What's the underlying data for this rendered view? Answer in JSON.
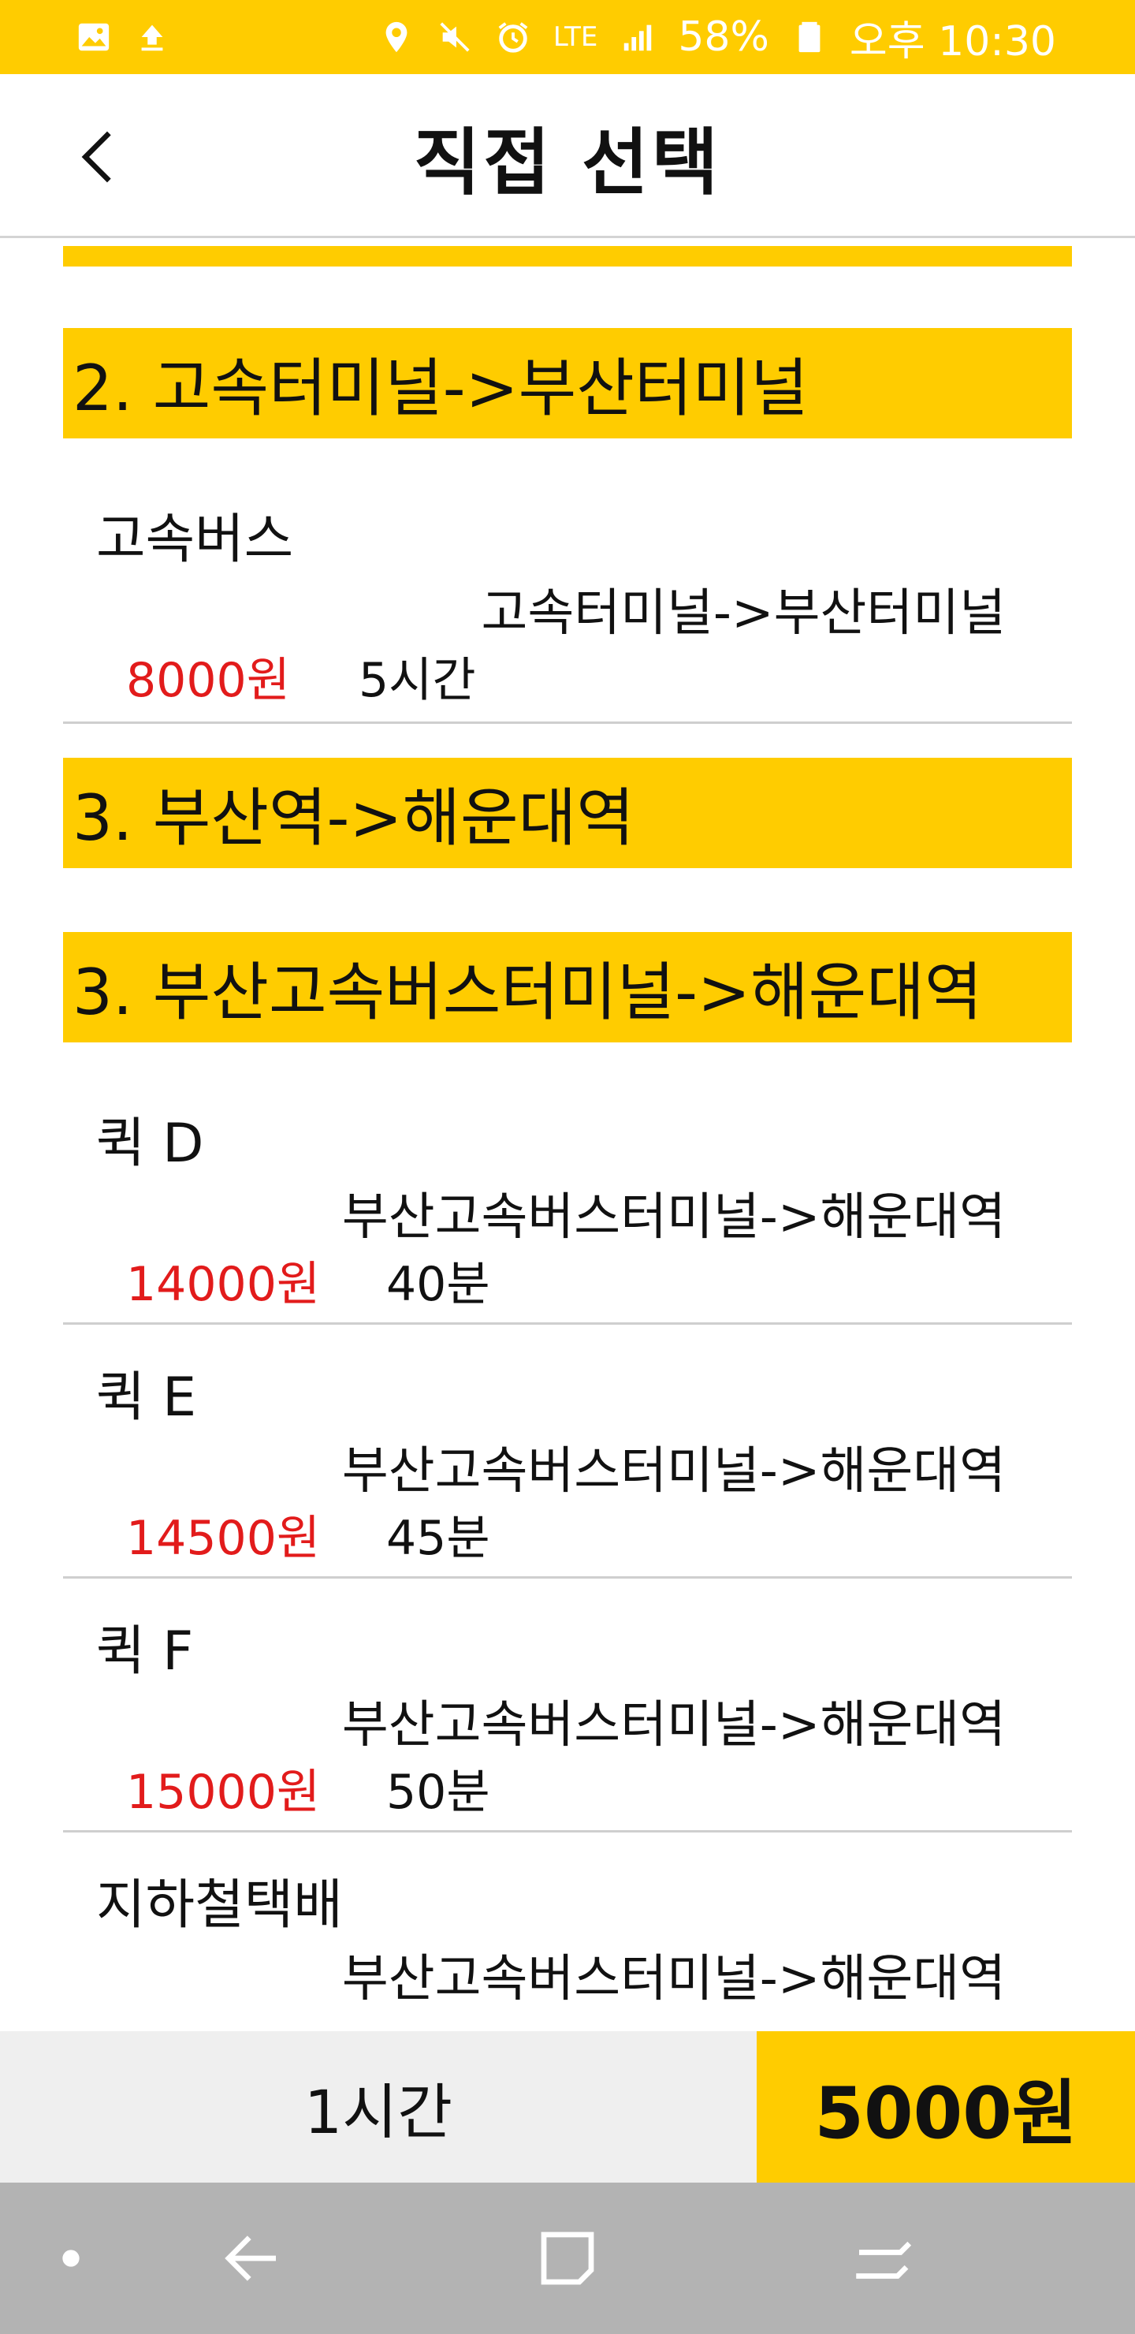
{
  "status_bar": {
    "network": "LTE",
    "battery": "58%",
    "time": "오후 10:30",
    "icons": [
      "image-icon",
      "upload-icon",
      "location-icon",
      "mute-icon",
      "alarm-icon",
      "lte-icon",
      "signal-icon",
      "battery-icon"
    ]
  },
  "app_bar": {
    "title": "직접 선택",
    "back_icon": "chevron-left-icon"
  },
  "sections": [
    {
      "header": "2. 고속터미널->부산터미널"
    },
    {
      "header": "3. 부산역->해운대역"
    },
    {
      "header": "3. 부산고속버스터미널->해운대역"
    }
  ],
  "routes": [
    {
      "name": "고속버스",
      "path": "고속터미널->부산터미널",
      "price": "8000원",
      "time": "5시간"
    },
    {
      "name": "퀵 D",
      "path": "부산고속버스터미널->해운대역",
      "price": "14000원",
      "time": "40분"
    },
    {
      "name": "퀵 E",
      "path": "부산고속버스터미널->해운대역",
      "price": "14500원",
      "time": "45분"
    },
    {
      "name": "퀵 F",
      "path": "부산고속버스터미널->해운대역",
      "price": "15000원",
      "time": "50분"
    },
    {
      "name": "지하철택배",
      "path": "부산고속버스터미널->해운대역",
      "price": "",
      "time": ""
    }
  ],
  "summary": {
    "total_time": "1시간",
    "total_price": "5000원"
  },
  "colors": {
    "accent": "#FFCC00",
    "price": "#E21B1B",
    "nav_bar": "#B3B3B3"
  },
  "nav_bar": {
    "icons": [
      "dot-icon",
      "back-arrow-icon",
      "home-square-icon",
      "recents-icon"
    ]
  }
}
